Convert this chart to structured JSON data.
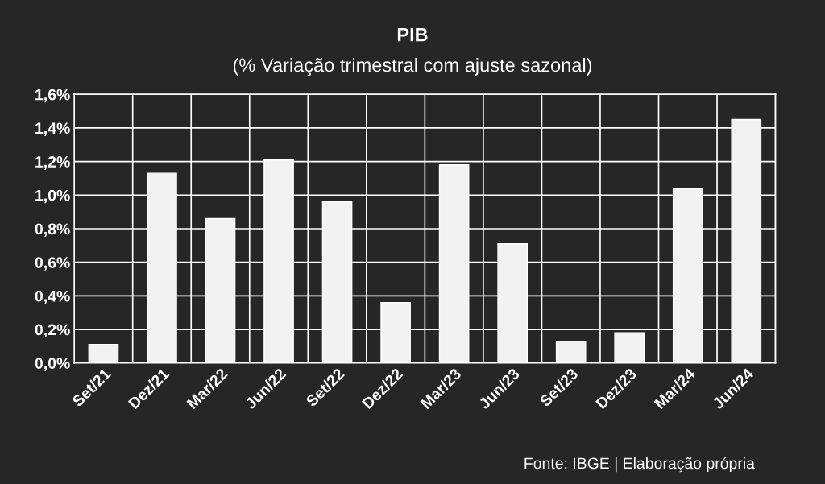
{
  "chart_data": {
    "type": "bar",
    "title": "PIB",
    "subtitle": "(% Variação trimestral com ajuste sazonal)",
    "categories": [
      "Set/21",
      "Dez/21",
      "Mar/22",
      "Jun/22",
      "Set/22",
      "Dez/22",
      "Mar/23",
      "Jun/23",
      "Set/23",
      "Dez/23",
      "Mar/24",
      "Jun/24"
    ],
    "values": [
      0.11,
      1.13,
      0.86,
      1.21,
      0.96,
      0.36,
      1.18,
      0.71,
      0.13,
      0.18,
      1.04,
      1.45
    ],
    "color": "#f2f2f2",
    "ylim": [
      0,
      1.6
    ],
    "yticks": [
      {
        "value": 0,
        "label": "0,0%"
      },
      {
        "value": 0.2,
        "label": "0,2%"
      },
      {
        "value": 0.4,
        "label": "0,4%"
      },
      {
        "value": 0.6,
        "label": "0,6%"
      },
      {
        "value": 0.8,
        "label": "0,8%"
      },
      {
        "value": 1.0,
        "label": "1,0%"
      },
      {
        "value": 1.2,
        "label": "1,2%"
      },
      {
        "value": 1.4,
        "label": "1,4%"
      },
      {
        "value": 1.6,
        "label": "1,6%"
      }
    ],
    "grid": true,
    "annotations": [
      "Fonte: IBGE | Elaboração própria"
    ]
  }
}
